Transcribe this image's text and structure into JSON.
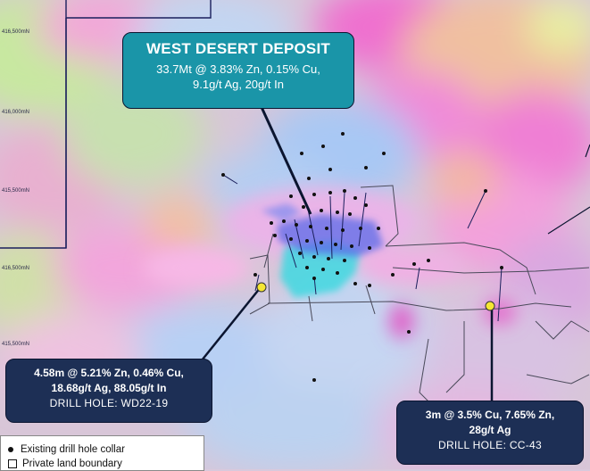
{
  "deposit": {
    "title": "WEST DESERT DEPOSIT",
    "line1": "33.7Mt @ 3.83% Zn, 0.15% Cu,",
    "line2": "9.1g/t Ag, 20g/t In"
  },
  "hole_wd": {
    "line1": "4.58m @ 5.21% Zn, 0.46% Cu,",
    "line2": "18.68g/t Ag, 88.05g/t In",
    "name": "DRILL HOLE: WD22-19",
    "marker_color": "#f5e633"
  },
  "hole_cc": {
    "line1": "3m @ 3.5% Cu, 7.65% Zn,",
    "line2": "28g/t Ag",
    "name": "DRILL HOLE: CC-43",
    "marker_color": "#f5e633"
  },
  "northings": [
    "416,500mN",
    "416,000mN",
    "415,500mN",
    "416,500mN",
    "415,500mN"
  ],
  "legend": {
    "collar": "Existing drill hole collar",
    "private_land": "Private land boundary"
  },
  "colors": {
    "callout_teal": "#1a95a8",
    "callout_navy": "#1d2f55",
    "boundary": "#1a1f5c",
    "anomaly_magenta": "#e85fd2",
    "anomaly_blue": "#a8c8f0",
    "orebody_cyan": "#3fd8e0",
    "orebody_blue": "#5b6be8"
  }
}
